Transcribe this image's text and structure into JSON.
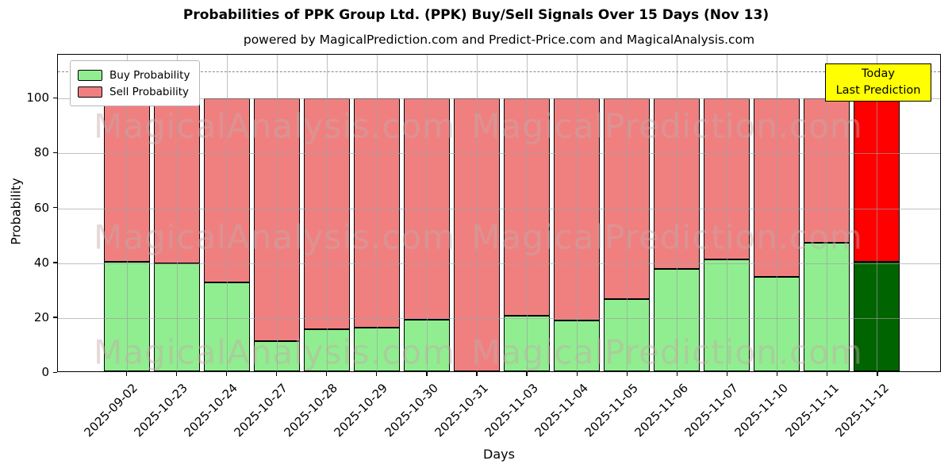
{
  "figure": {
    "title": "Probabilities of PPK Group Ltd. (PPK) Buy/Sell Signals Over 15 Days (Nov 13)",
    "subtitle": "powered by MagicalPrediction.com and Predict-Price.com and MagicalAnalysis.com"
  },
  "legend": {
    "buy_label": "Buy Probability",
    "sell_label": "Sell Probability"
  },
  "annotation": {
    "line1": "Today",
    "line2": "Last Prediction"
  },
  "colors": {
    "buy": "#90EE90",
    "sell": "#F08080",
    "today_buy": "#006400",
    "today_sell": "#FF0000",
    "bar_edge": "#000000",
    "annotation_bg": "#FFFF00",
    "grid": "#a0a0a0",
    "dashed_line": "#8a8a8a"
  },
  "watermarks": {
    "left_text": "MagicalAnalysis.com",
    "right_text": "MagicalPrediction.com"
  },
  "chart_data": {
    "type": "bar",
    "stacked": true,
    "title": "Probabilities of PPK Group Ltd. (PPK) Buy/Sell Signals Over 15 Days (Nov 13)",
    "xlabel": "Days",
    "ylabel": "Probability",
    "categories": [
      "2025-09-02",
      "2025-10-23",
      "2025-10-24",
      "2025-10-27",
      "2025-10-28",
      "2025-10-29",
      "2025-10-30",
      "2025-10-31",
      "2025-11-03",
      "2025-11-04",
      "2025-11-05",
      "2025-11-06",
      "2025-11-07",
      "2025-11-10",
      "2025-11-11",
      "2025-11-12"
    ],
    "series": [
      {
        "name": "Buy Probability",
        "color": "#90EE90",
        "values": [
          40,
          39.5,
          32.5,
          11,
          15.5,
          16,
          19,
          0,
          20.5,
          18.5,
          26.5,
          37.5,
          41,
          34.5,
          47,
          40
        ]
      },
      {
        "name": "Sell Probability",
        "color": "#F08080",
        "values": [
          60,
          60.5,
          67.5,
          89,
          84.5,
          84,
          81,
          100,
          79.5,
          81.5,
          73.5,
          62.5,
          59,
          65.5,
          53,
          60
        ]
      }
    ],
    "today_index": 15,
    "yticks": [
      0,
      20,
      40,
      60,
      80,
      100
    ],
    "ylim": [
      0,
      116
    ],
    "dashed_line_y": 110,
    "grid": true,
    "legend_position": "upper-left",
    "annotation_box": "Today Last Prediction"
  }
}
